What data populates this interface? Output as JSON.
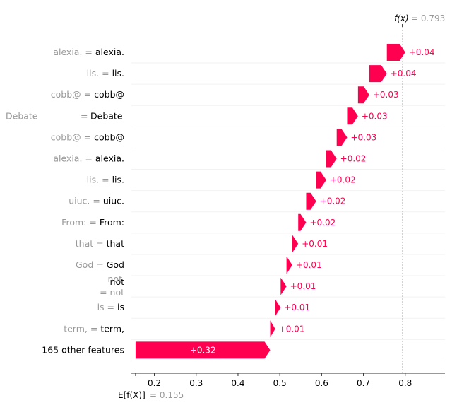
{
  "chart_data": {
    "type": "waterfall",
    "fx_label": "f(x)",
    "fx_value": "= 0.793",
    "efx_label": "E[f(X)]",
    "efx_value": "= 0.155",
    "base_value": 0.155,
    "final_value": 0.793,
    "xlim": [
      0.145,
      0.895
    ],
    "x_ticks": [
      0.2,
      0.3,
      0.4,
      0.5,
      0.6,
      0.7,
      0.8
    ],
    "x_tick_labels": [
      "0.2",
      "0.3",
      "0.4",
      "0.5",
      "0.6",
      "0.7",
      "0.8"
    ],
    "color": "#ff0051",
    "rows": [
      {
        "feature": "alexia. =",
        "value": "alexia.",
        "contribution": 0.044,
        "label": "+0.04"
      },
      {
        "feature": "lis. =",
        "value": "lis.",
        "contribution": 0.042,
        "label": "+0.04"
      },
      {
        "feature": "cobb@ =",
        "value": "cobb@",
        "contribution": 0.027,
        "label": "+0.03"
      },
      {
        "feature": "Debate",
        "value": "Debate",
        "contribution": 0.026,
        "label": "+0.03",
        "split": true
      },
      {
        "feature": "cobb@ =",
        "value": "cobb@",
        "contribution": 0.025,
        "label": "+0.03"
      },
      {
        "feature": "alexia. =",
        "value": "alexia.",
        "contribution": 0.025,
        "label": "+0.02"
      },
      {
        "feature": "lis. =",
        "value": "lis.",
        "contribution": 0.024,
        "label": "+0.02"
      },
      {
        "feature": "uiuc. =",
        "value": "uiuc.",
        "contribution": 0.024,
        "label": "+0.02"
      },
      {
        "feature": "From:  =",
        "value": "From:",
        "contribution": 0.019,
        "label": "+0.02"
      },
      {
        "feature": "that  =",
        "value": "that",
        "contribution": 0.014,
        "label": "+0.01"
      },
      {
        "feature": "God  =",
        "value": "God",
        "contribution": 0.014,
        "label": "+0.01"
      },
      {
        "feature": "not",
        "value": "not",
        "contribution": 0.014,
        "label": "+0.01",
        "stacked": true,
        "feature_line2": "= not"
      },
      {
        "feature": "is  =",
        "value": "is",
        "contribution": 0.013,
        "label": "+0.01"
      },
      {
        "feature": "term,  =",
        "value": "term,",
        "contribution": 0.012,
        "label": "+0.01"
      },
      {
        "feature": "",
        "value": "165 other features",
        "contribution": 0.322,
        "label": "+0.32",
        "other": true
      }
    ]
  }
}
